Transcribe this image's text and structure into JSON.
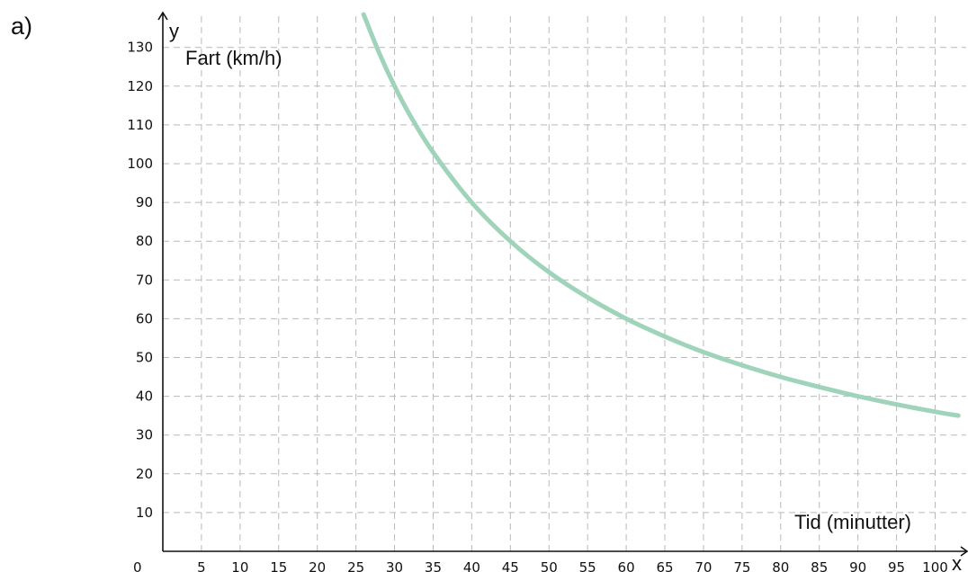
{
  "part_label": "a)",
  "chart_data": {
    "type": "line",
    "x_variable": "x",
    "y_variable": "y",
    "xlabel": "Tid (minutter)",
    "ylabel": "Fart (km/h)",
    "xlim": [
      0,
      102
    ],
    "ylim": [
      0,
      138
    ],
    "x_ticks": [
      0,
      5,
      10,
      15,
      20,
      25,
      30,
      35,
      40,
      45,
      50,
      55,
      60,
      65,
      70,
      75,
      80,
      85,
      90,
      95,
      100
    ],
    "y_ticks": [
      10,
      20,
      30,
      40,
      50,
      60,
      70,
      80,
      90,
      100,
      110,
      120,
      130
    ],
    "x_tick_labels": [
      "0",
      "5",
      "10",
      "15",
      "20",
      "25",
      "30",
      "35",
      "40",
      "45",
      "50",
      "55",
      "60",
      "65",
      "70",
      "75",
      "80",
      "85",
      "90",
      "95",
      "100"
    ],
    "y_tick_labels": [
      "10",
      "20",
      "30",
      "40",
      "50",
      "60",
      "70",
      "80",
      "90",
      "100",
      "110",
      "120",
      "130"
    ],
    "grid": true,
    "series": [
      {
        "color": "#9fd4bb",
        "x": [
          26,
          28,
          30,
          32,
          35,
          40,
          45,
          50,
          55,
          60,
          65,
          70,
          75,
          80,
          85,
          90,
          95,
          100,
          103
        ],
        "y": [
          138.5,
          128.6,
          120,
          112.5,
          102.9,
          90,
          80,
          72,
          65.5,
          60,
          55.4,
          51.4,
          48,
          45,
          42.4,
          40,
          37.9,
          36,
          35
        ]
      }
    ]
  }
}
